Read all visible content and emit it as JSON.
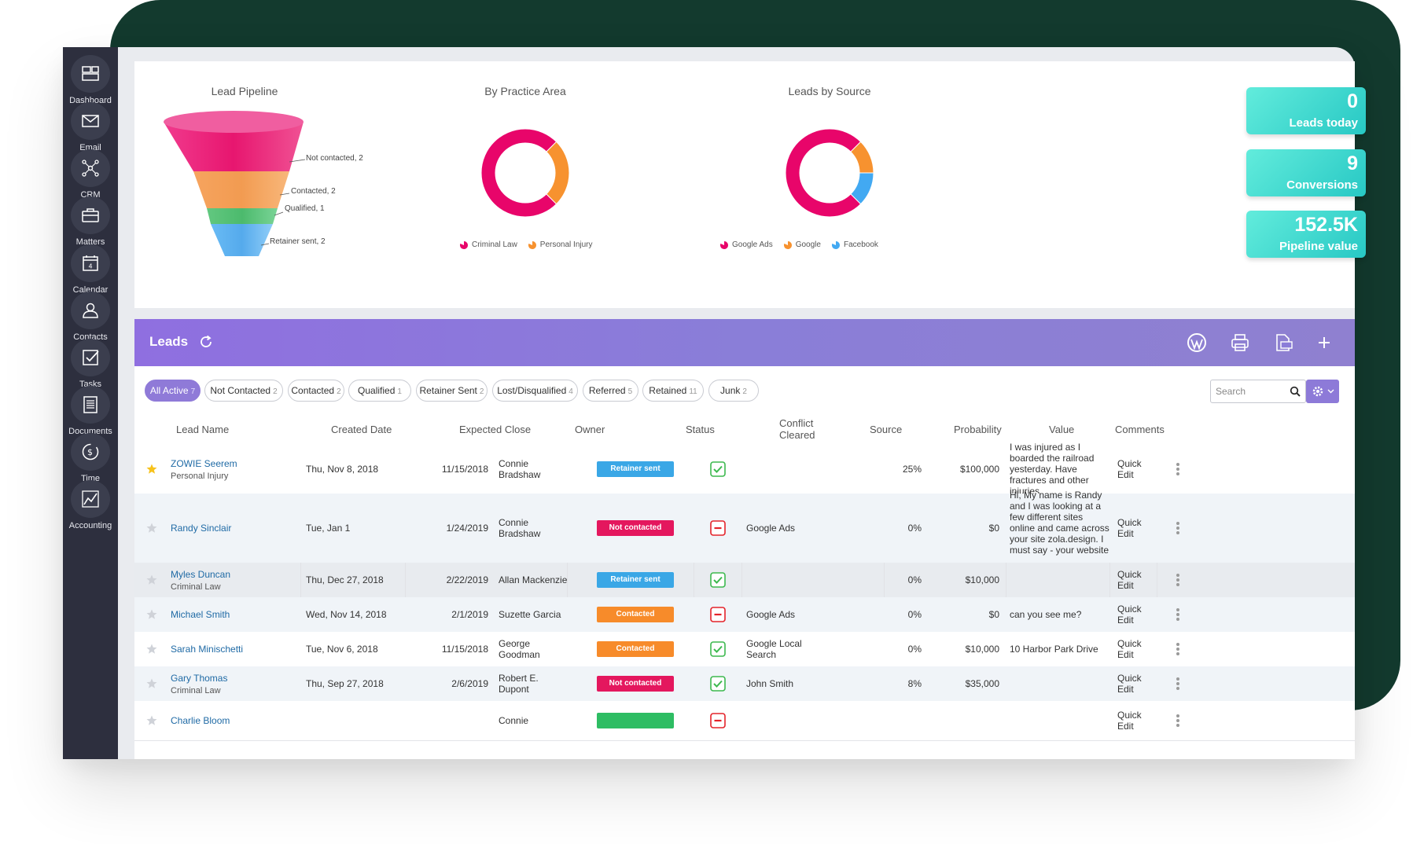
{
  "sidebar": {
    "items": [
      {
        "label": "Dashboard",
        "icon": "dashboard-icon"
      },
      {
        "label": "Email",
        "icon": "email-icon"
      },
      {
        "label": "CRM",
        "icon": "crm-icon"
      },
      {
        "label": "Matters",
        "icon": "briefcase-icon"
      },
      {
        "label": "Calendar",
        "icon": "calendar-icon",
        "badge": "4"
      },
      {
        "label": "Contacts",
        "icon": "contacts-icon"
      },
      {
        "label": "Tasks",
        "icon": "tasks-icon"
      },
      {
        "label": "Documents",
        "icon": "documents-icon"
      },
      {
        "label": "Time",
        "icon": "time-icon"
      },
      {
        "label": "Accounting",
        "icon": "accounting-icon"
      }
    ]
  },
  "charts": {
    "pipeline": {
      "title": "Lead Pipeline",
      "stages": [
        {
          "label": "Not contacted, 2",
          "color": "#e91e76"
        },
        {
          "label": "Contacted, 2",
          "color": "#f7a35c"
        },
        {
          "label": "Qualified, 1",
          "color": "#5cc27a"
        },
        {
          "label": "Retainer sent, 2",
          "color": "#5aaef0"
        }
      ]
    },
    "practice": {
      "title": "By Practice Area",
      "legend": [
        {
          "label": "Criminal Law",
          "color": "#e8056a"
        },
        {
          "label": "Personal Injury",
          "color": "#f7922f"
        }
      ]
    },
    "source": {
      "title": "Leads by Source",
      "legend": [
        {
          "label": "Google Ads",
          "color": "#e8056a"
        },
        {
          "label": "Google",
          "color": "#f7922f"
        },
        {
          "label": "Facebook",
          "color": "#42a9f2"
        }
      ]
    }
  },
  "chart_data": [
    {
      "type": "funnel",
      "title": "Lead Pipeline",
      "categories": [
        "Not contacted",
        "Contacted",
        "Qualified",
        "Retainer sent"
      ],
      "values": [
        2,
        2,
        1,
        2
      ]
    },
    {
      "type": "pie",
      "title": "By Practice Area",
      "categories": [
        "Criminal Law",
        "Personal Injury"
      ],
      "values": [
        0.75,
        0.25
      ]
    },
    {
      "type": "pie",
      "title": "Leads by Source",
      "categories": [
        "Google Ads",
        "Google",
        "Facebook"
      ],
      "values": [
        0.75,
        0.125,
        0.125
      ]
    }
  ],
  "stats": [
    {
      "value": "0",
      "label": "Leads today"
    },
    {
      "value": "9",
      "label": "Conversions"
    },
    {
      "value": "152.5K",
      "label": "Pipeline value"
    }
  ],
  "leads": {
    "title": "Leads",
    "filters": [
      {
        "label": "All Active",
        "count": "7",
        "active": true
      },
      {
        "label": "Not Contacted",
        "count": "2"
      },
      {
        "label": "Contacted",
        "count": "2"
      },
      {
        "label": "Qualified",
        "count": "1"
      },
      {
        "label": "Retainer Sent",
        "count": "2"
      },
      {
        "label": "Lost/Disqualified",
        "count": "4"
      },
      {
        "label": "Referred",
        "count": "5"
      },
      {
        "label": "Retained",
        "count": "11"
      },
      {
        "label": "Junk",
        "count": "2"
      }
    ],
    "search_placeholder": "Search",
    "columns": [
      "Lead Name",
      "Created Date",
      "Expected Close",
      "Owner",
      "Status",
      "Conflict Cleared",
      "Source",
      "Probability",
      "Value",
      "Comments"
    ],
    "quick_edit": "Quick Edit",
    "rows": [
      {
        "starred": true,
        "name": "ZOWIE Seerem",
        "area": "Personal Injury",
        "created": "Thu, Nov 8, 2018",
        "close": "11/15/2018",
        "owner": "Connie Bradshaw",
        "status": "Retainer sent",
        "status_color": "#3aa7e6",
        "conflict": "ok",
        "source": "",
        "probability": "25%",
        "value": "$100,000",
        "comments": "I was injured as I boarded the railroad yesterday. Have fractures and other injuries."
      },
      {
        "starred": false,
        "name": "Randy Sinclair",
        "area": "",
        "created": "Tue, Jan 1",
        "close": "1/24/2019",
        "owner": "Connie Bradshaw",
        "status": "Not contacted",
        "status_color": "#e4175e",
        "conflict": "no",
        "source": "Google Ads",
        "probability": "0%",
        "value": "$0",
        "comments": "Hi, My name is Randy and I was looking at a few different sites online and came across your site zola.design. I must say - your website ..."
      },
      {
        "starred": false,
        "name": "Myles Duncan",
        "area": "Criminal Law",
        "created": "Thu, Dec 27, 2018",
        "close": "2/22/2019",
        "owner": "Allan Mackenzie",
        "status": "Retainer sent",
        "status_color": "#3aa7e6",
        "conflict": "ok",
        "source": "",
        "probability": "0%",
        "value": "$10,000",
        "comments": ""
      },
      {
        "starred": false,
        "name": "Michael Smith",
        "area": "",
        "created": "Wed, Nov 14, 2018",
        "close": "2/1/2019",
        "owner": "Suzette Garcia",
        "status": "Contacted",
        "status_color": "#f78b2a",
        "conflict": "no",
        "source": "Google Ads",
        "probability": "0%",
        "value": "$0",
        "comments": "can you see me?"
      },
      {
        "starred": false,
        "name": "Sarah Minischetti",
        "area": "",
        "created": "Tue, Nov 6, 2018",
        "close": "11/15/2018",
        "owner": "George Goodman",
        "status": "Contacted",
        "status_color": "#f78b2a",
        "conflict": "ok",
        "source": "Google Local Search",
        "probability": "0%",
        "value": "$10,000",
        "comments": "10 Harbor Park Drive"
      },
      {
        "starred": false,
        "name": "Gary Thomas",
        "area": "Criminal Law",
        "created": "Thu, Sep 27, 2018",
        "close": "2/6/2019",
        "owner": "Robert E. Dupont",
        "status": "Not contacted",
        "status_color": "#e4175e",
        "conflict": "ok",
        "source": "John Smith",
        "probability": "8%",
        "value": "$35,000",
        "comments": ""
      },
      {
        "starred": false,
        "name": "Charlie Bloom",
        "area": "",
        "created": "",
        "close": "",
        "owner": "Connie",
        "status": "",
        "status_color": "#2ebd63",
        "conflict": "no",
        "source": "",
        "probability": "",
        "value": "",
        "comments": ""
      }
    ]
  }
}
